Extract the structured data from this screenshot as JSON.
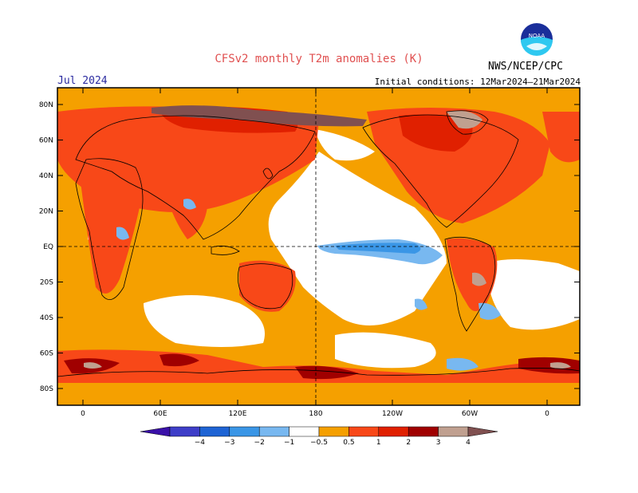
{
  "title": "CFSv2 monthly T2m anomalies (K)",
  "agency": "NWS/NCEP/CPC",
  "logo_text": "NOAA",
  "valid_month": "Jul 2024",
  "initial_conditions": "Initial conditions: 12Mar2024–21Mar2024",
  "lat_labels": [
    "80N",
    "60N",
    "40N",
    "20N",
    "EQ",
    "20S",
    "40S",
    "60S",
    "80S"
  ],
  "lon_labels": [
    "0",
    "60E",
    "120E",
    "180",
    "120W",
    "60W",
    "0"
  ],
  "colorbar": {
    "ticks": [
      "−4",
      "−3",
      "−2",
      "−1",
      "−0.5",
      "0.5",
      "1",
      "2",
      "3",
      "4"
    ],
    "colors": [
      "#3a10a8",
      "#3e3ec8",
      "#1e64d4",
      "#3a96e6",
      "#78b8f0",
      "#ffffff",
      "#f5a000",
      "#f84818",
      "#e02000",
      "#a00000",
      "#c0a090",
      "#805050"
    ]
  },
  "anomaly_colors": {
    "strong_cold": "#1e64d4",
    "cold": "#78b8f0",
    "neutral": "#ffffff",
    "warm": "#f5a000",
    "warmer": "#f84818",
    "hot": "#e02000",
    "very_hot": "#a00000",
    "extreme": "#805050"
  }
}
